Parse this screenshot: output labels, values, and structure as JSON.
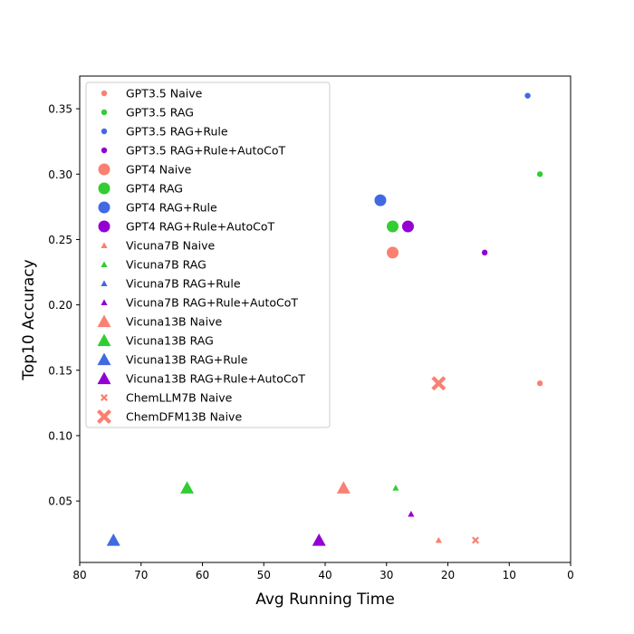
{
  "chart_data": {
    "type": "scatter",
    "title": "",
    "xlabel": "Avg Running Time",
    "ylabel": "Top10 Accuracy",
    "xlim": [
      80,
      0
    ],
    "ylim": [
      0.003,
      0.375
    ],
    "x_ticks": [
      80,
      70,
      60,
      50,
      40,
      30,
      20,
      10,
      0
    ],
    "y_ticks": [
      0.05,
      0.1,
      0.15,
      0.2,
      0.25,
      0.3,
      0.35
    ],
    "y_tick_labels": [
      "0.05",
      "0.10",
      "0.15",
      "0.20",
      "0.25",
      "0.30",
      "0.35"
    ],
    "legend_position": "upper-left",
    "series": [
      {
        "name": "GPT3.5 Naive",
        "marker": "circle",
        "size": "small",
        "color": "#fa8072",
        "points": [
          {
            "x": 5,
            "y": 0.14
          }
        ]
      },
      {
        "name": "GPT3.5 RAG",
        "marker": "circle",
        "size": "small",
        "color": "#32cd32",
        "points": [
          {
            "x": 5,
            "y": 0.3
          }
        ]
      },
      {
        "name": "GPT3.5 RAG+Rule",
        "marker": "circle",
        "size": "small",
        "color": "#4169e1",
        "points": [
          {
            "x": 7,
            "y": 0.36
          }
        ]
      },
      {
        "name": "GPT3.5 RAG+Rule+AutoCoT",
        "marker": "circle",
        "size": "small",
        "color": "#9400d3",
        "points": [
          {
            "x": 14,
            "y": 0.24
          }
        ]
      },
      {
        "name": "GPT4 Naive",
        "marker": "circle",
        "size": "large",
        "color": "#fa8072",
        "points": [
          {
            "x": 29,
            "y": 0.24
          }
        ]
      },
      {
        "name": "GPT4 RAG",
        "marker": "circle",
        "size": "large",
        "color": "#32cd32",
        "points": [
          {
            "x": 29,
            "y": 0.26
          }
        ]
      },
      {
        "name": "GPT4 RAG+Rule",
        "marker": "circle",
        "size": "large",
        "color": "#4169e1",
        "points": [
          {
            "x": 31,
            "y": 0.28
          }
        ]
      },
      {
        "name": "GPT4 RAG+Rule+AutoCoT",
        "marker": "circle",
        "size": "large",
        "color": "#9400d3",
        "points": [
          {
            "x": 26.5,
            "y": 0.26
          }
        ]
      },
      {
        "name": "Vicuna7B Naive",
        "marker": "triangle",
        "size": "small",
        "color": "#fa8072",
        "points": [
          {
            "x": 21.5,
            "y": 0.02
          }
        ]
      },
      {
        "name": "Vicuna7B RAG",
        "marker": "triangle",
        "size": "small",
        "color": "#32cd32",
        "points": [
          {
            "x": 28.5,
            "y": 0.06
          }
        ]
      },
      {
        "name": "Vicuna7B RAG+Rule",
        "marker": "triangle",
        "size": "small",
        "color": "#4169e1",
        "points": []
      },
      {
        "name": "Vicuna7B RAG+Rule+AutoCoT",
        "marker": "triangle",
        "size": "small",
        "color": "#9400d3",
        "points": [
          {
            "x": 26,
            "y": 0.04
          }
        ]
      },
      {
        "name": "Vicuna13B Naive",
        "marker": "triangle",
        "size": "large",
        "color": "#fa8072",
        "points": [
          {
            "x": 37,
            "y": 0.06
          }
        ]
      },
      {
        "name": "Vicuna13B RAG",
        "marker": "triangle",
        "size": "large",
        "color": "#32cd32",
        "points": [
          {
            "x": 62.5,
            "y": 0.06
          }
        ]
      },
      {
        "name": "Vicuna13B RAG+Rule",
        "marker": "triangle",
        "size": "large",
        "color": "#4169e1",
        "points": [
          {
            "x": 74.5,
            "y": 0.02
          }
        ]
      },
      {
        "name": "Vicuna13B RAG+Rule+AutoCoT",
        "marker": "triangle",
        "size": "large",
        "color": "#9400d3",
        "points": [
          {
            "x": 41,
            "y": 0.02
          }
        ]
      },
      {
        "name": "ChemLLM7B Naive",
        "marker": "x",
        "size": "small",
        "color": "#fa8072",
        "points": [
          {
            "x": 15.5,
            "y": 0.02
          }
        ]
      },
      {
        "name": "ChemDFM13B Naive",
        "marker": "x",
        "size": "large",
        "color": "#fa8072",
        "points": [
          {
            "x": 21.5,
            "y": 0.14
          }
        ]
      }
    ]
  }
}
